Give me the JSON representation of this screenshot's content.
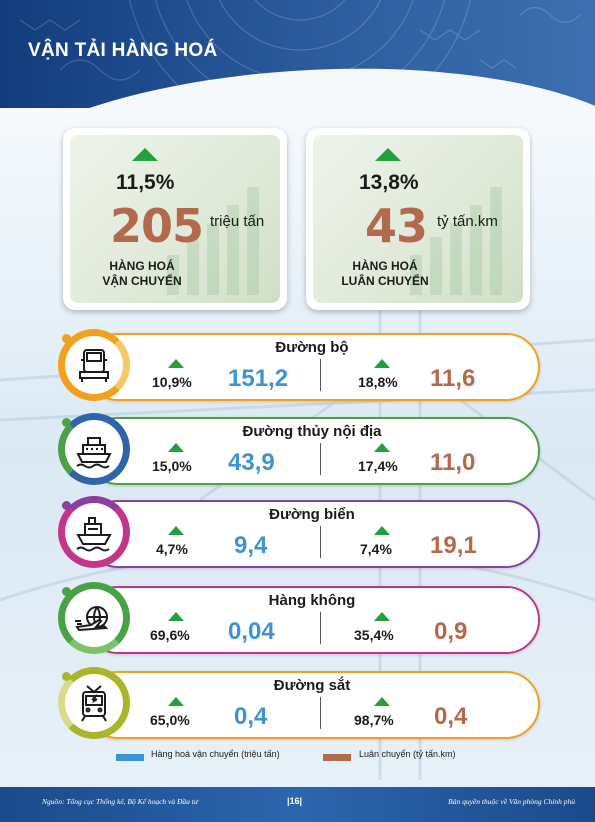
{
  "title": "VẬN TẢI HÀNG HOÁ",
  "cards": [
    {
      "change": "11,5%",
      "value": "205",
      "unit": "triệu tấn",
      "label_line1": "HÀNG HOÁ",
      "label_line2": "VẬN CHUYỂN"
    },
    {
      "change": "13,8%",
      "value": "43",
      "unit": "tỷ tấn.km",
      "label_line1": "HÀNG HOÁ",
      "label_line2": "LUÂN CHUYỂN"
    }
  ],
  "modes": [
    {
      "name": "Đường bộ",
      "icon": "truck-icon",
      "color": "#f0a11e",
      "change_a": "10,9%",
      "value_a": "151,2",
      "change_b": "18,8%",
      "value_b": "11,6"
    },
    {
      "name": "Đường thủy nội địa",
      "icon": "ship-icon",
      "color": "#2f64a8",
      "change_a": "15,0%",
      "value_a": "43,9",
      "change_b": "17,4%",
      "value_b": "11,0"
    },
    {
      "name": "Đường biển",
      "icon": "cargo-ship-icon",
      "color": "#8b3fa0",
      "change_a": "4,7%",
      "value_a": "9,4",
      "change_b": "7,4%",
      "value_b": "19,1"
    },
    {
      "name": "Hàng không",
      "icon": "airplane-globe-icon",
      "color": "#49a346",
      "change_a": "69,6%",
      "value_a": "0,04",
      "change_b": "35,4%",
      "value_b": "0,9"
    },
    {
      "name": "Đường sắt",
      "icon": "train-icon",
      "color": "#a9b62a",
      "change_a": "65,0%",
      "value_a": "0,4",
      "change_b": "98,7%",
      "value_b": "0,4"
    }
  ],
  "legend": {
    "blue_label": "Hàng hoá vận chuyển (triệu tấn)",
    "blue_color": "#3e93d3",
    "brown_label": "Luân chuyển (tỷ tấn.km)",
    "brown_color": "#b36a4c"
  },
  "footer": {
    "source": "Nguồn: Tổng cục Thống kê, Bộ Kế hoạch và Đầu tư",
    "page": "|16|",
    "copyright": "Bản quyền thuộc về Văn phòng Chính phủ"
  }
}
